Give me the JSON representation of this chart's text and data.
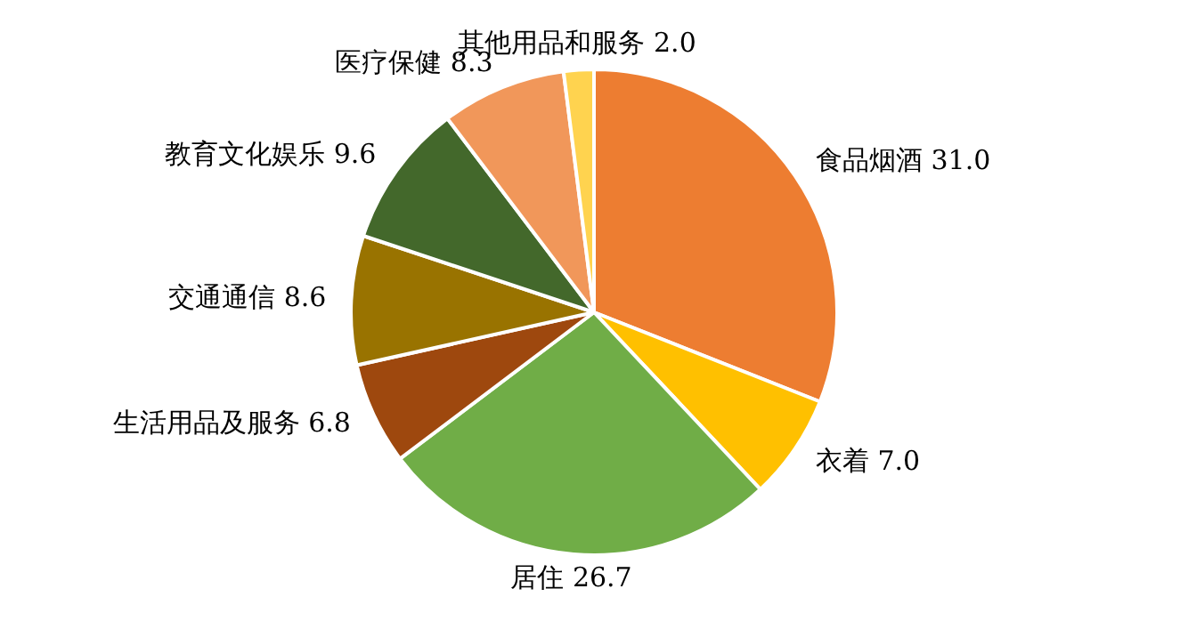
{
  "chart_data": {
    "type": "pie",
    "categories": [
      "食品烟酒",
      "衣着",
      "居住",
      "生活用品及服务",
      "交通通信",
      "教育文化娱乐",
      "医疗保健",
      "其他用品和服务"
    ],
    "values": [
      31.0,
      7.0,
      26.7,
      6.8,
      8.6,
      9.6,
      8.3,
      2.0
    ],
    "value_labels": [
      "31.0",
      "7.0",
      "26.7",
      "6.8",
      "8.6",
      "9.6",
      "8.3",
      "2.0"
    ],
    "colors": [
      "#ed7d31",
      "#ffc000",
      "#70ad47",
      "#9e480e",
      "#997300",
      "#43682b",
      "#f1975a",
      "#ffd34f"
    ],
    "legend": false
  }
}
